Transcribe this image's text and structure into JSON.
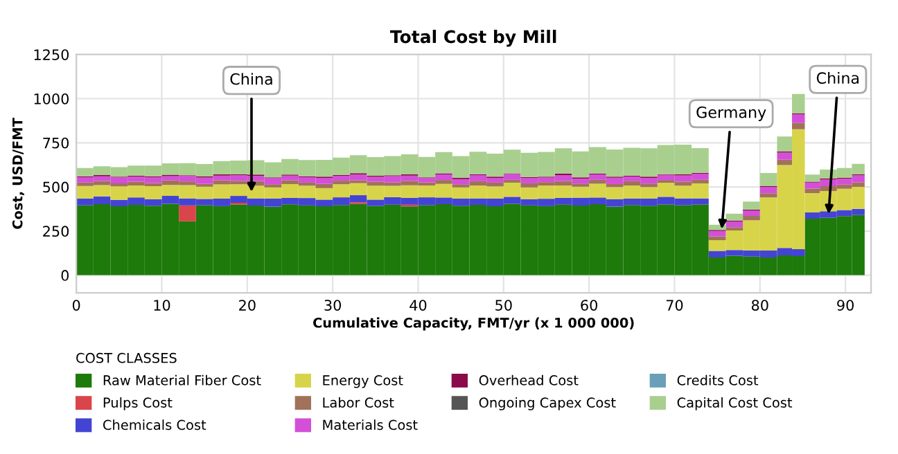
{
  "chart_data": {
    "type": "bar",
    "stacked": true,
    "title": "Total Cost by Mill",
    "xlabel": "Cumulative Capacity, FMT/yr (x 1 000 000)",
    "ylabel": "Cost, USD/FMT",
    "legend_title": "COST CLASSES",
    "x": [
      1,
      3,
      5,
      7,
      9,
      11,
      13,
      15,
      17,
      19,
      21,
      23,
      25,
      27,
      29,
      31,
      33,
      35,
      37,
      39,
      41,
      43,
      45,
      47,
      49,
      51,
      53,
      55,
      57,
      59,
      61,
      63,
      65,
      67,
      69,
      71,
      73,
      75,
      77,
      79,
      81,
      83,
      84.5,
      86,
      88,
      90,
      91.5
    ],
    "series": [
      {
        "name": "Raw Material Fiber Cost",
        "color": "#1e7a0a",
        "values": [
          395,
          402,
          390,
          398,
          393,
          404,
          305,
          396,
          391,
          400,
          394,
          388,
          401,
          395,
          390,
          397,
          403,
          392,
          399,
          389,
          396,
          402,
          393,
          398,
          390,
          404,
          395,
          391,
          399,
          394,
          402,
          388,
          397,
          393,
          400,
          396,
          400,
          100,
          110,
          105,
          100,
          112,
          108,
          320,
          325,
          335,
          340
        ]
      },
      {
        "name": "Pulps Cost",
        "color": "#d9454a",
        "values": [
          0,
          0,
          0,
          0,
          0,
          0,
          90,
          0,
          0,
          10,
          0,
          0,
          0,
          0,
          0,
          0,
          10,
          0,
          0,
          10,
          0,
          0,
          0,
          0,
          0,
          0,
          0,
          0,
          0,
          0,
          0,
          0,
          0,
          0,
          0,
          0,
          0,
          0,
          0,
          0,
          0,
          0,
          0,
          0,
          0,
          0,
          0
        ]
      },
      {
        "name": "Chemicals Cost",
        "color": "#4444d4",
        "values": [
          40,
          44,
          37,
          42,
          38,
          45,
          40,
          36,
          43,
          39,
          41,
          46,
          37,
          42,
          38,
          44,
          40,
          36,
          43,
          39,
          45,
          38,
          41,
          37,
          44,
          40,
          36,
          42,
          39,
          45,
          38,
          43,
          37,
          41,
          44,
          39,
          35,
          38,
          33,
          36,
          40,
          42,
          39,
          35,
          37,
          34,
          36
        ]
      },
      {
        "name": "Energy Cost",
        "color": "#d8d44a",
        "values": [
          70,
          64,
          76,
          68,
          73,
          62,
          75,
          69,
          80,
          66,
          72,
          63,
          78,
          70,
          65,
          74,
          68,
          79,
          64,
          71,
          67,
          77,
          63,
          73,
          69,
          80,
          66,
          75,
          70,
          62,
          78,
          68,
          74,
          65,
          79,
          72,
          85,
          60,
          110,
          170,
          300,
          470,
          680,
          110,
          115,
          120,
          124
        ]
      },
      {
        "name": "Labor Cost",
        "color": "#a0725a",
        "values": [
          20,
          24,
          17,
          22,
          18,
          25,
          21,
          16,
          23,
          19,
          26,
          18,
          22,
          17,
          24,
          20,
          16,
          23,
          19,
          25,
          17,
          22,
          18,
          24,
          21,
          16,
          23,
          19,
          25,
          18,
          22,
          17,
          24,
          20,
          16,
          23,
          20,
          22,
          19,
          25,
          24,
          30,
          35,
          25,
          27,
          24,
          26
        ]
      },
      {
        "name": "Materials Cost",
        "color": "#d44fd8",
        "values": [
          30,
          26,
          34,
          28,
          33,
          25,
          31,
          36,
          27,
          32,
          29,
          35,
          26,
          31,
          34,
          28,
          33,
          27,
          36,
          30,
          25,
          32,
          29,
          35,
          27,
          33,
          30,
          26,
          34,
          28,
          31,
          36,
          27,
          32,
          29,
          35,
          35,
          30,
          32,
          29,
          35,
          40,
          50,
          35,
          37,
          33,
          40
        ]
      },
      {
        "name": "Overhead Cost",
        "color": "#8b0a4a",
        "values": [
          5,
          7,
          4,
          6,
          5,
          8,
          4,
          6,
          7,
          5,
          8,
          4,
          6,
          5,
          7,
          4,
          8,
          6,
          5,
          7,
          4,
          6,
          8,
          5,
          7,
          4,
          6,
          5,
          8,
          7,
          4,
          6,
          5,
          7,
          4,
          6,
          5,
          6,
          4,
          7,
          5,
          6,
          4,
          5,
          7,
          6,
          5
        ]
      },
      {
        "name": "Ongoing Capex Cost",
        "color": "#555555",
        "values": [
          0,
          0,
          0,
          0,
          0,
          0,
          0,
          0,
          0,
          0,
          0,
          0,
          0,
          0,
          0,
          0,
          0,
          0,
          0,
          0,
          0,
          0,
          0,
          0,
          0,
          0,
          0,
          0,
          0,
          0,
          0,
          0,
          0,
          0,
          0,
          0,
          0,
          0,
          0,
          0,
          0,
          0,
          0,
          0,
          0,
          0,
          0
        ]
      },
      {
        "name": "Credits Cost",
        "color": "#6a9fb8",
        "values": [
          0,
          0,
          0,
          0,
          0,
          0,
          0,
          0,
          0,
          0,
          0,
          0,
          0,
          0,
          0,
          0,
          0,
          0,
          0,
          0,
          0,
          0,
          0,
          0,
          0,
          0,
          0,
          0,
          0,
          0,
          0,
          0,
          0,
          0,
          0,
          0,
          0,
          0,
          0,
          0,
          0,
          0,
          0,
          0,
          0,
          0,
          0
        ]
      },
      {
        "name": "Capital Cost Cost",
        "color": "#a9cf8f",
        "values": [
          47,
          50,
          54,
          57,
          61,
          64,
          68,
          71,
          75,
          78,
          81,
          85,
          88,
          92,
          95,
          99,
          102,
          106,
          109,
          113,
          116,
          120,
          123,
          127,
          130,
          134,
          137,
          140,
          144,
          147,
          151,
          154,
          158,
          161,
          165,
          168,
          140,
          30,
          40,
          45,
          75,
          85,
          110,
          40,
          50,
          55,
          60
        ]
      }
    ],
    "xlim": [
      0,
      93
    ],
    "xticks": [
      0,
      10,
      20,
      30,
      40,
      50,
      60,
      70,
      80,
      90
    ],
    "ylim": [
      -100,
      1250
    ],
    "yticks": [
      0,
      250,
      500,
      750,
      1000,
      1250
    ],
    "grid": true,
    "legend": "bottom",
    "annotations": [
      {
        "text": "China",
        "x": 20.5,
        "y": 450
      },
      {
        "text": "Germany",
        "x": 75.5,
        "y": 240
      },
      {
        "text": "China",
        "x": 88,
        "y": 325
      }
    ]
  }
}
